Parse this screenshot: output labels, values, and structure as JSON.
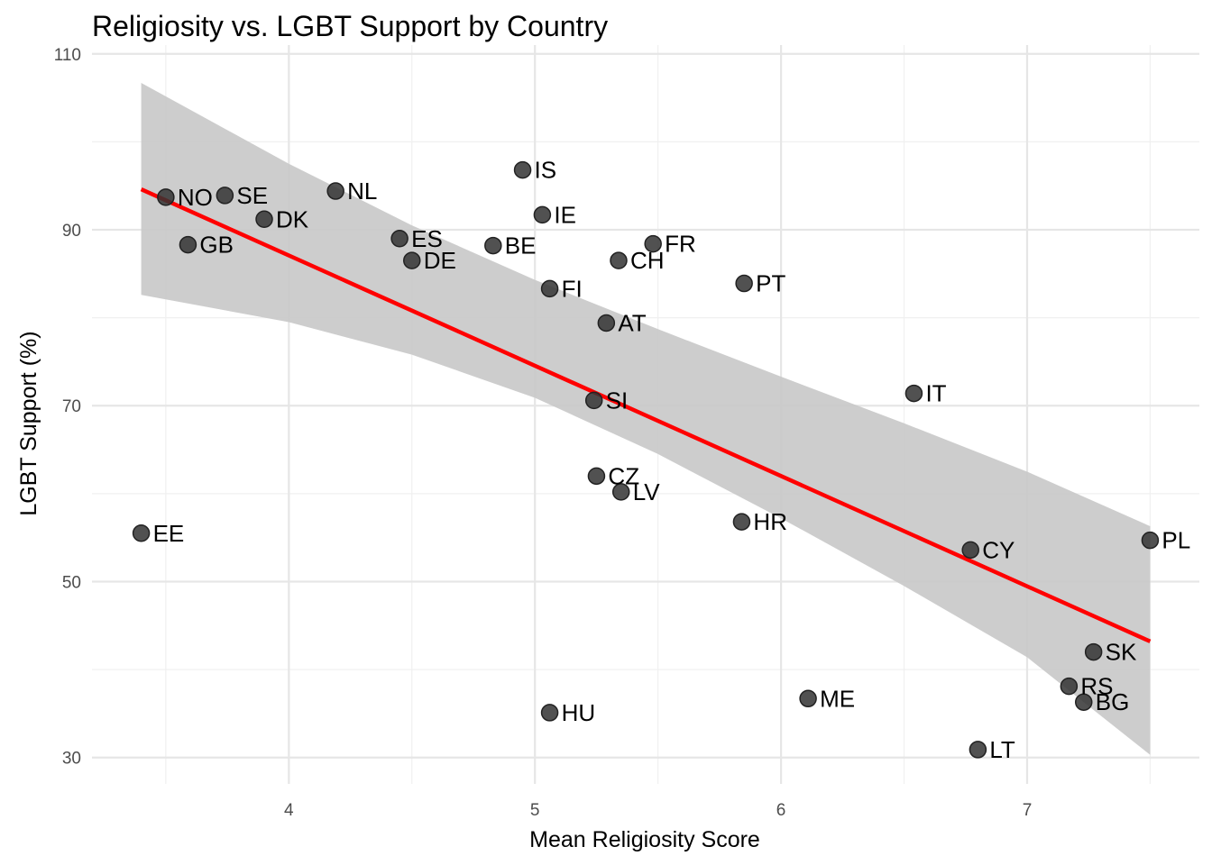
{
  "chart_data": {
    "type": "scatter",
    "title": "Religiosity vs. LGBT Support by Country",
    "xlabel": "Mean Religiosity Score",
    "ylabel": "LGBT Support (%)",
    "xlim": [
      3.2,
      7.7
    ],
    "ylim": [
      27,
      111
    ],
    "xticks": [
      4,
      5,
      6,
      7
    ],
    "yticks": [
      30,
      50,
      70,
      90,
      110
    ],
    "grid": true,
    "legend": "none",
    "colors": {
      "point": "#333333",
      "regression_line": "#ff0000",
      "confidence_band": "#c8c8c8"
    },
    "points": [
      {
        "label": "NO",
        "x": 3.5,
        "y": 93.7
      },
      {
        "label": "SE",
        "x": 3.74,
        "y": 93.9
      },
      {
        "label": "DK",
        "x": 3.9,
        "y": 91.2
      },
      {
        "label": "GB",
        "x": 3.59,
        "y": 88.3
      },
      {
        "label": "EE",
        "x": 3.4,
        "y": 55.5
      },
      {
        "label": "NL",
        "x": 4.19,
        "y": 94.4
      },
      {
        "label": "ES",
        "x": 4.45,
        "y": 89.0
      },
      {
        "label": "DE",
        "x": 4.5,
        "y": 86.5
      },
      {
        "label": "BE",
        "x": 4.83,
        "y": 88.2
      },
      {
        "label": "IS",
        "x": 4.95,
        "y": 96.8
      },
      {
        "label": "IE",
        "x": 5.03,
        "y": 91.7
      },
      {
        "label": "FI",
        "x": 5.06,
        "y": 83.3
      },
      {
        "label": "HU",
        "x": 5.06,
        "y": 35.1
      },
      {
        "label": "SI",
        "x": 5.24,
        "y": 70.6
      },
      {
        "label": "CZ",
        "x": 5.25,
        "y": 62.0
      },
      {
        "label": "AT",
        "x": 5.29,
        "y": 79.4
      },
      {
        "label": "CH",
        "x": 5.34,
        "y": 86.5
      },
      {
        "label": "LV",
        "x": 5.35,
        "y": 60.2
      },
      {
        "label": "FR",
        "x": 5.48,
        "y": 88.4
      },
      {
        "label": "HR",
        "x": 5.84,
        "y": 56.8
      },
      {
        "label": "PT",
        "x": 5.85,
        "y": 83.9
      },
      {
        "label": "ME",
        "x": 6.11,
        "y": 36.7
      },
      {
        "label": "IT",
        "x": 6.54,
        "y": 71.4
      },
      {
        "label": "CY",
        "x": 6.77,
        "y": 53.6
      },
      {
        "label": "LT",
        "x": 6.8,
        "y": 30.9
      },
      {
        "label": "RS",
        "x": 7.17,
        "y": 38.1
      },
      {
        "label": "BG",
        "x": 7.23,
        "y": 36.3
      },
      {
        "label": "SK",
        "x": 7.27,
        "y": 42.0
      },
      {
        "label": "PL",
        "x": 7.5,
        "y": 54.7
      }
    ],
    "regression": {
      "x_start": 3.4,
      "y_start": 94.6,
      "x_end": 7.5,
      "y_end": 43.2
    },
    "confidence_band": [
      {
        "x": 3.4,
        "lower": 82.6,
        "upper": 106.7
      },
      {
        "x": 4.0,
        "lower": 79.5,
        "upper": 97.5
      },
      {
        "x": 4.5,
        "lower": 75.8,
        "upper": 90.5
      },
      {
        "x": 5.0,
        "lower": 70.9,
        "upper": 84.3
      },
      {
        "x": 5.5,
        "lower": 64.5,
        "upper": 78.7
      },
      {
        "x": 6.0,
        "lower": 57.2,
        "upper": 73.3
      },
      {
        "x": 6.5,
        "lower": 49.5,
        "upper": 68.0
      },
      {
        "x": 7.0,
        "lower": 41.4,
        "upper": 62.5
      },
      {
        "x": 7.5,
        "lower": 30.3,
        "upper": 56.3
      }
    ]
  }
}
